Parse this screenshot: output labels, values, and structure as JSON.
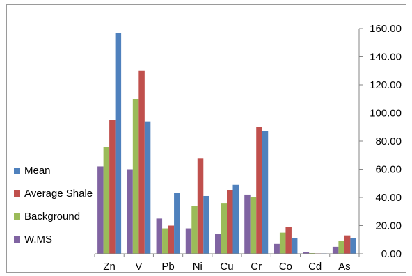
{
  "chart_data": {
    "type": "bar",
    "categories": [
      "Zn",
      "V",
      "Pb",
      "Ni",
      "Cu",
      "Cr",
      "Co",
      "Cd",
      "As"
    ],
    "series": [
      {
        "name": "W.MS",
        "color": "#8064a2",
        "values": [
          62,
          60,
          25,
          18,
          14,
          42,
          7,
          1,
          5
        ]
      },
      {
        "name": "Background",
        "color": "#9bbb59",
        "values": [
          76,
          110,
          18,
          34,
          36,
          40,
          15,
          0.5,
          9
        ]
      },
      {
        "name": "Average Shale",
        "color": "#c0504d",
        "values": [
          95,
          130,
          20,
          68,
          45,
          90,
          19,
          0.3,
          13
        ]
      },
      {
        "name": "Mean",
        "color": "#4f81bd",
        "values": [
          157,
          94,
          43,
          41,
          49,
          87,
          11,
          0.3,
          11
        ]
      }
    ],
    "yticks": [
      "0.00",
      "20.00",
      "40.00",
      "60.00",
      "80.00",
      "100.00",
      "120.00",
      "140.00",
      "160.00"
    ],
    "ylim": [
      0,
      160
    ],
    "y_axis_side": "right",
    "grid": false,
    "legend_position": "left",
    "legend_order": [
      "Mean",
      "Average Shale",
      "Background",
      "W.MS"
    ]
  }
}
